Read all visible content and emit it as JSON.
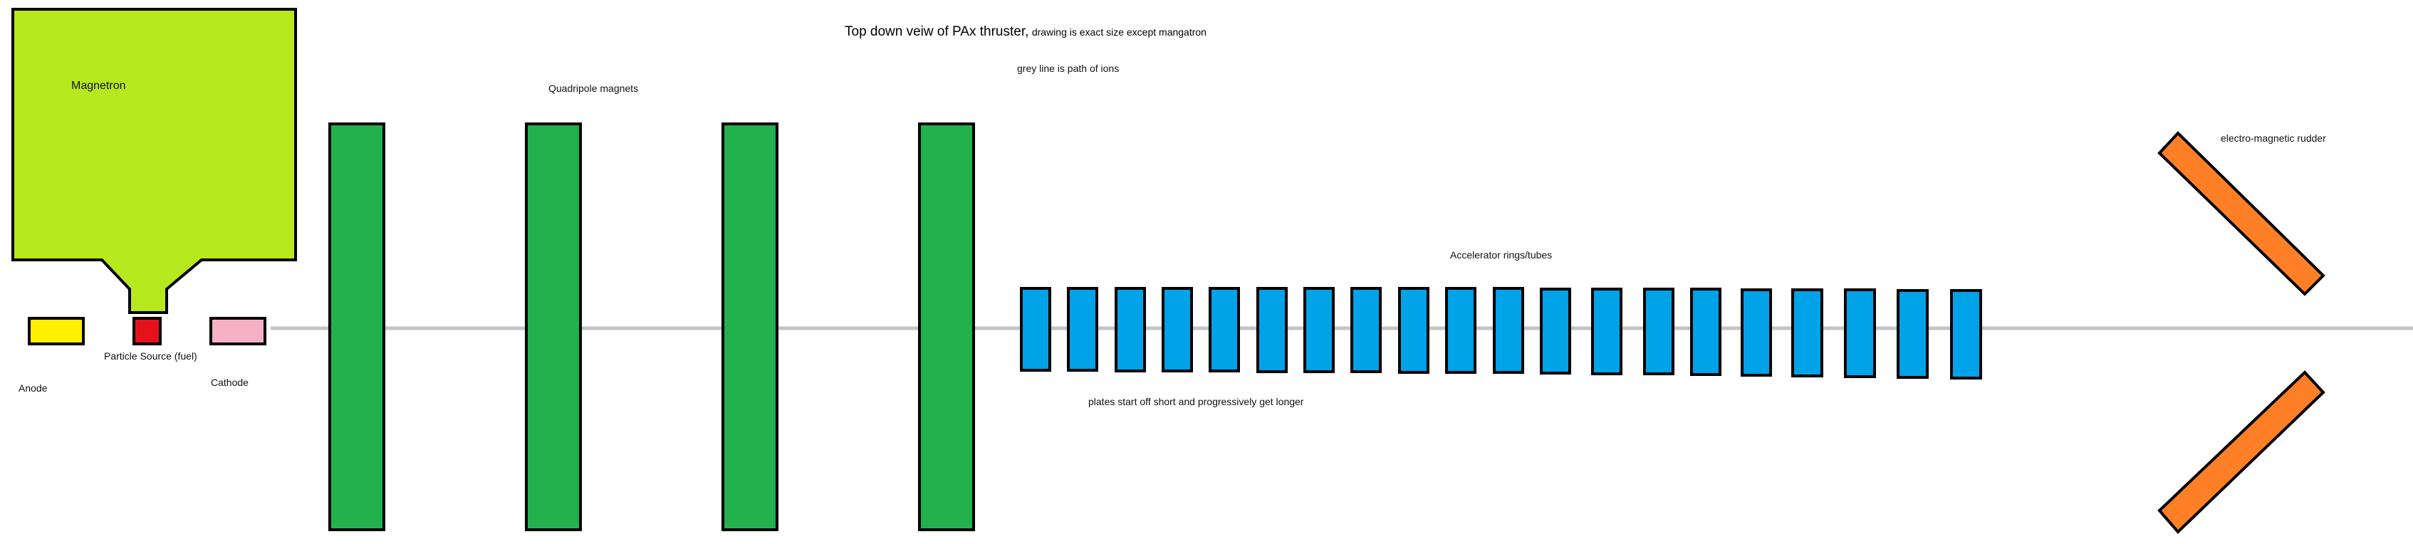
{
  "title": {
    "main": "Top down veiw of PAx thruster,",
    "sub": "drawing is exact size except mangatron"
  },
  "notes": {
    "ion_path": "grey line is path of ions",
    "plates": "plates start off short and progressively get longer"
  },
  "labels": {
    "magnetron": "Magnetron",
    "quadripole": "Quadripole magnets",
    "accelerator": "Accelerator rings/tubes",
    "rudder": "electro-magnetic rudder",
    "anode": "Anode",
    "particle_source": "Particle Source (fuel)",
    "cathode": "Cathode"
  },
  "colors": {
    "magnetron": "#b7e81e",
    "anode": "#ffef00",
    "particle_source": "#e5121b",
    "cathode": "#f6b0c5",
    "quadripole": "#22b14c",
    "accelerator": "#00a2e8",
    "rudder": "#ff7f27",
    "ion_path": "#c3c3c3"
  }
}
